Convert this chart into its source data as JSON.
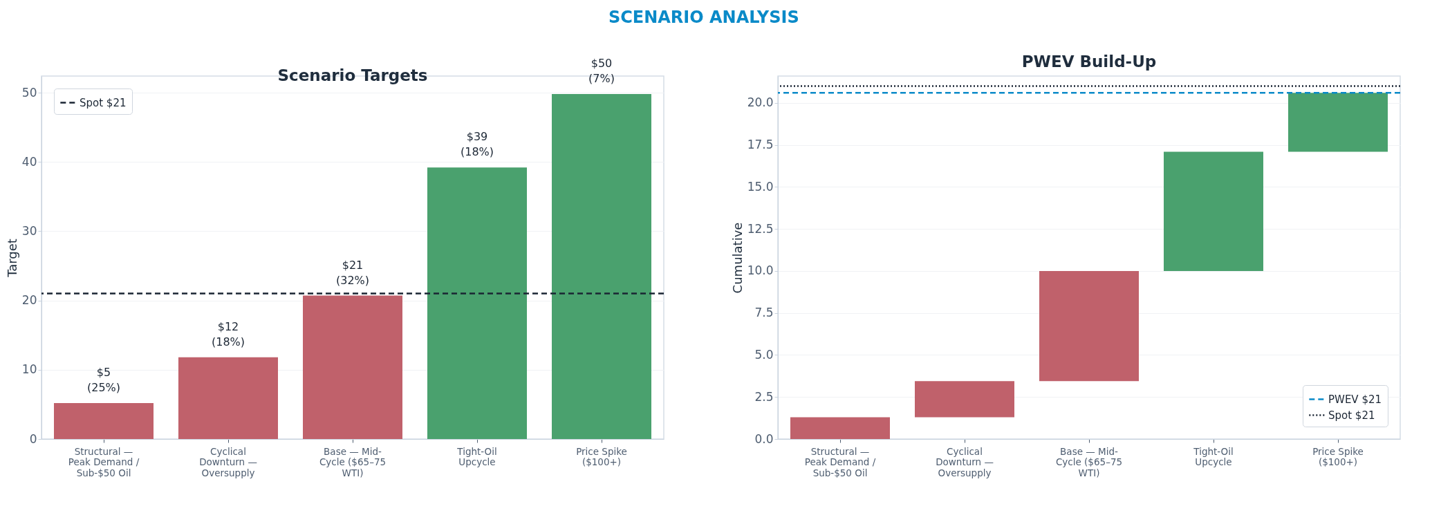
{
  "chart_data": [
    {
      "type": "bar",
      "title": "Scenario Targets",
      "ylabel": "Target",
      "annotations": [
        "SCENARIO ANALYSIS"
      ],
      "categories": [
        "Structural — Peak Demand / Sub-$50 Oil",
        "Cyclical Downturn — Oversupply",
        "Base — Mid-Cycle ($65–75 WTI)",
        "Tight-Oil Upcycle",
        "Price Spike ($100+)"
      ],
      "values": [
        5.2,
        11.8,
        20.7,
        39.2,
        49.8
      ],
      "colors": [
        "#c0616b",
        "#c0616b",
        "#c0616b",
        "#4aa16e",
        "#4aa16e"
      ],
      "value_labels": [
        "$5 (25%)",
        "$12 (18%)",
        "$21 (32%)",
        "$39 (18%)",
        "$50 (7%)"
      ],
      "ylim": [
        0,
        52.4
      ],
      "yticks": [
        0,
        10,
        20,
        30,
        40,
        50
      ],
      "grid": "y",
      "legend": "top left",
      "ref_lines": [
        {
          "axis": "y",
          "value": 21,
          "label": "Spot $21",
          "color": "#1a2533",
          "line_style": "dashed"
        }
      ]
    },
    {
      "type": "bar",
      "title": "PWEV Build-Up",
      "ylabel": "Cumulative",
      "categories": [
        "Structural — Peak Demand / Sub-$50 Oil",
        "Cyclical Downturn — Oversupply",
        "Base — Mid-Cycle ($65–75 WTI)",
        "Tight-Oil Upcycle",
        "Price Spike ($100+)"
      ],
      "base": [
        0,
        1.3,
        3.45,
        10.0,
        17.1
      ],
      "values": [
        1.3,
        2.15,
        6.55,
        7.1,
        3.5
      ],
      "colors": [
        "#c0616b",
        "#c0616b",
        "#c0616b",
        "#4aa16e",
        "#4aa16e"
      ],
      "ylim": [
        0,
        21.6
      ],
      "yticks": [
        {
          "value": 0,
          "label": "0.0"
        },
        {
          "value": 2.5,
          "label": "2.5"
        },
        {
          "value": 5,
          "label": "5.0"
        },
        {
          "value": 7.5,
          "label": "7.5"
        },
        {
          "value": 10,
          "label": "10.0"
        },
        {
          "value": 12.5,
          "label": "12.5"
        },
        {
          "value": 15,
          "label": "15.0"
        },
        {
          "value": 17.5,
          "label": "17.5"
        },
        {
          "value": 20,
          "label": "20.0"
        }
      ],
      "grid": "y",
      "legend": "bottom right",
      "ref_lines": [
        {
          "axis": "y",
          "value": 20.6,
          "label": "PWEV $21",
          "color": "#0a8ac8",
          "line_style": "dashed"
        },
        {
          "axis": "y",
          "value": 21.0,
          "label": "Spot $21",
          "color": "#1a2533",
          "line_style": "dotted"
        }
      ]
    }
  ]
}
